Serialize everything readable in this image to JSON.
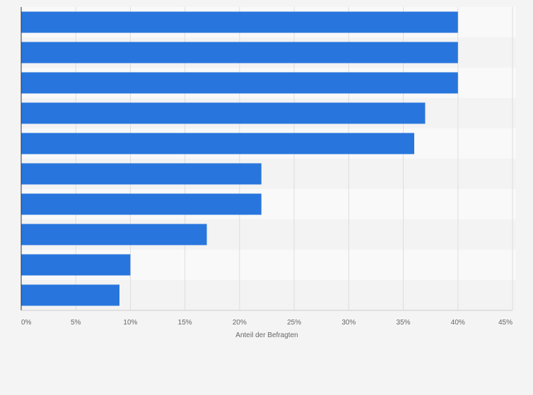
{
  "chart_data": {
    "type": "bar",
    "orientation": "horizontal",
    "title": "",
    "xlabel": "Anteil der Befragten",
    "ylabel": "",
    "categories": [
      "",
      "",
      "",
      "",
      "",
      "",
      "",
      "",
      "",
      ""
    ],
    "values": [
      40,
      40,
      40,
      37,
      36,
      22,
      22,
      17,
      10,
      9
    ],
    "xlim": [
      0,
      45
    ],
    "ticks": [
      0,
      5,
      10,
      15,
      20,
      25,
      30,
      35,
      40,
      45
    ],
    "tick_labels": [
      "0%",
      "5%",
      "10%",
      "15%",
      "20%",
      "25%",
      "30%",
      "35%",
      "40%",
      "45%"
    ],
    "grid": "vertical",
    "legend": "none",
    "colors": {
      "bar": "#2876dd",
      "band_light": "#f9f9f9",
      "band_dark": "#f3f3f3",
      "gridline": "#dddddd",
      "axis": "#333333",
      "text": "#666666",
      "page_background": "#f4f4f4"
    }
  }
}
